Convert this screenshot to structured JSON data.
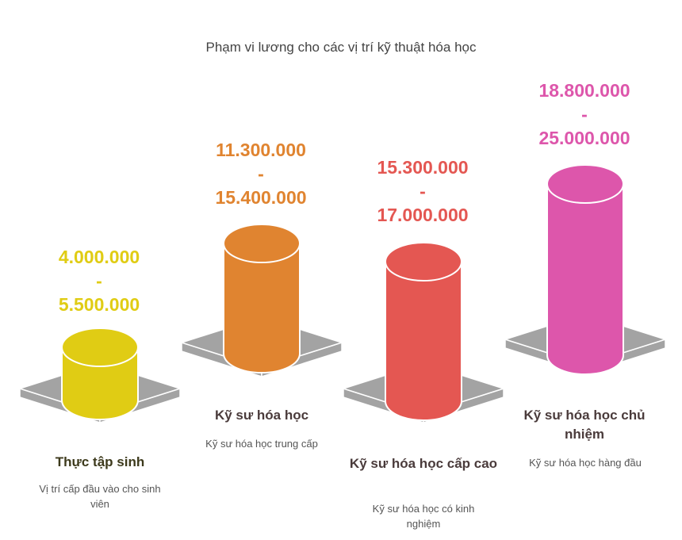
{
  "title": "Phạm vi lương cho các vị trí kỹ thuật hóa học",
  "items": [
    {
      "name": "Thực tập sinh",
      "desc": "Vị trí cấp đầu vào cho sinh viên",
      "min": "4.000.000",
      "sep": "-",
      "max": "5.500.000",
      "color": "#e0cc14",
      "text_color": "#3d3a1c"
    },
    {
      "name": "Kỹ sư hóa học",
      "desc": "Kỹ sư hóa học trung cấp",
      "min": "11.300.000",
      "sep": "-",
      "max": "15.400.000",
      "color": "#e08430",
      "text_color": "#4a3b3b"
    },
    {
      "name": "Kỹ sư hóa học cấp cao",
      "desc": "Kỹ sư hóa học có kinh nghiệm",
      "min": "15.300.000",
      "sep": "-",
      "max": "17.000.000",
      "color": "#e45752",
      "text_color": "#4a3b3b"
    },
    {
      "name": "Kỹ sư hóa học chủ nhiệm",
      "desc": "Kỹ sư hóa học hàng đầu",
      "min": "18.800.000",
      "sep": "-",
      "max": "25.000.000",
      "color": "#dd56ab",
      "text_color": "#4a3b3b"
    }
  ]
}
